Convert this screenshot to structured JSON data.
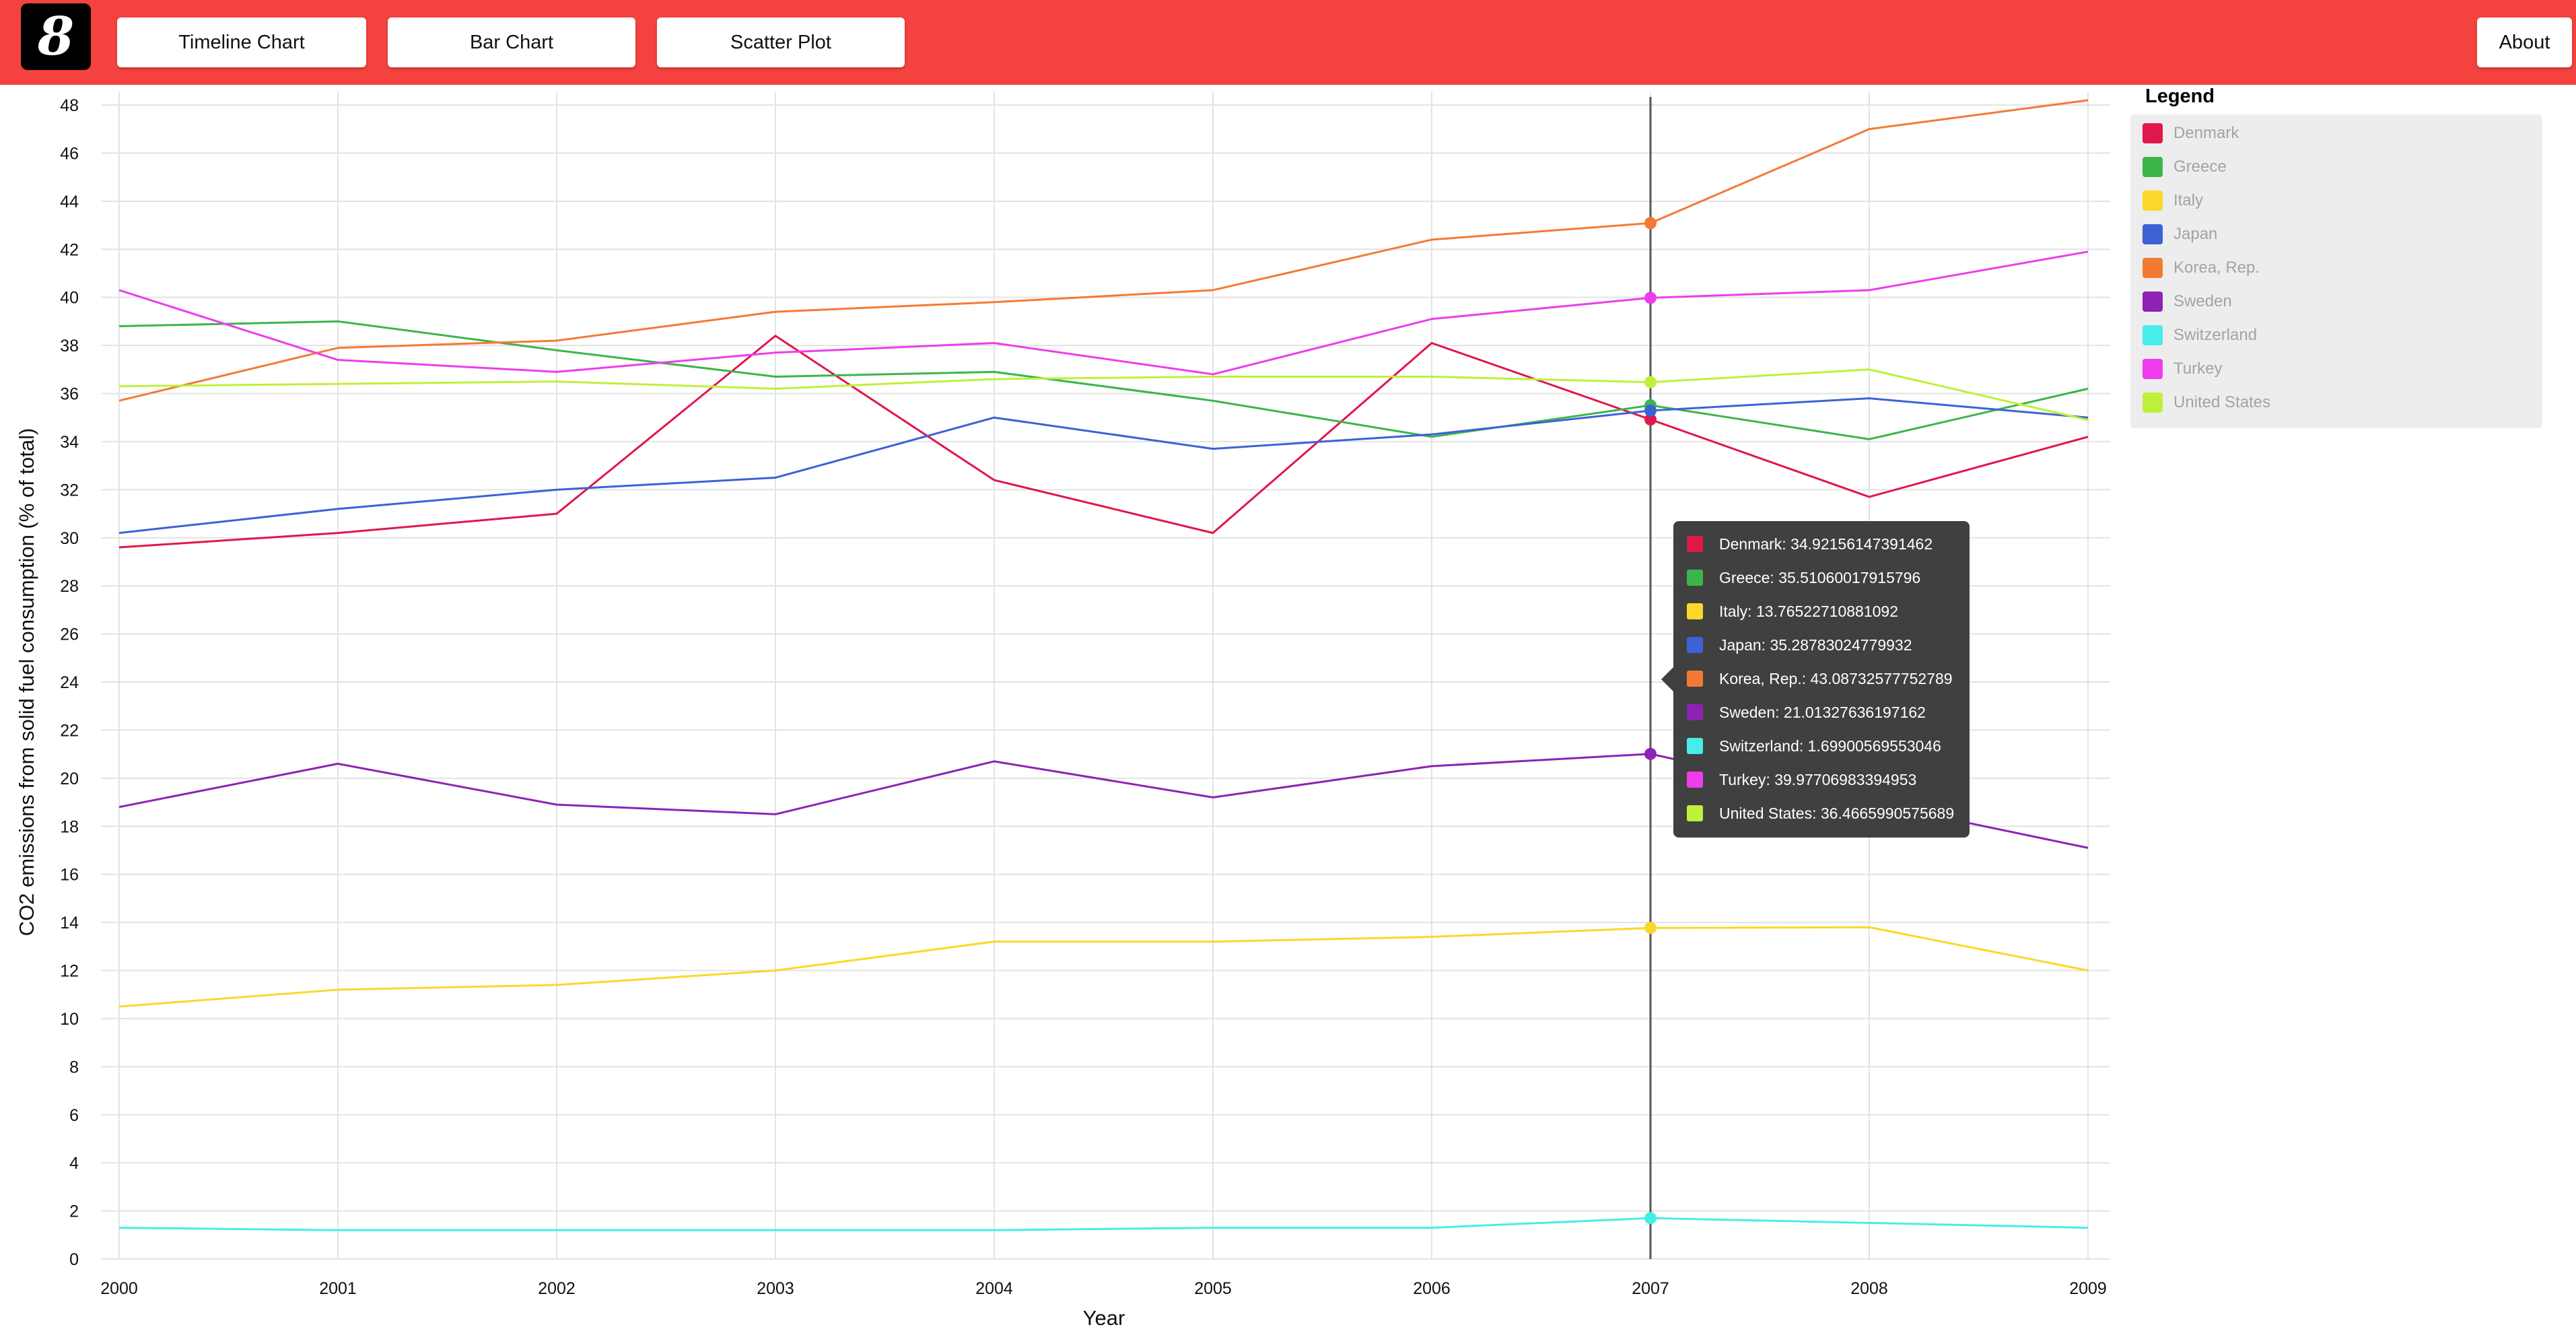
{
  "app": {
    "logo_text": "8",
    "nav": {
      "timeline_label": "Timeline Chart",
      "bar_label": "Bar Chart",
      "scatter_label": "Scatter Plot",
      "about_label": "About"
    }
  },
  "colors": {
    "topbar": "#f4433f",
    "gridline": "#e3e3e3",
    "cursor_line": "#555555",
    "tooltip_bg": "#404040",
    "legend_bg": "#ededed"
  },
  "legend": {
    "title": "Legend",
    "items": [
      {
        "label": "Denmark",
        "color": "#e0174a"
      },
      {
        "label": "Greece",
        "color": "#3cb54a"
      },
      {
        "label": "Italy",
        "color": "#fad829"
      },
      {
        "label": "Japan",
        "color": "#3d62d6"
      },
      {
        "label": "Korea, Rep.",
        "color": "#f47a33"
      },
      {
        "label": "Sweden",
        "color": "#8e22b5"
      },
      {
        "label": "Switzerland",
        "color": "#47ede8"
      },
      {
        "label": "Turkey",
        "color": "#ed3ded"
      },
      {
        "label": "United States",
        "color": "#bff03a"
      }
    ]
  },
  "tooltip": {
    "rows": [
      "Denmark: 34.92156147391462",
      "Greece: 35.51060017915796",
      "Italy: 13.76522710881092",
      "Japan: 35.28783024779932",
      "Korea, Rep.: 43.08732577752789",
      "Sweden: 21.01327636197162",
      "Switzerland: 1.69900569553046",
      "Turkey: 39.97706983394953",
      "United States: 36.4665990575689"
    ]
  },
  "chart_data": {
    "type": "line",
    "title": "",
    "xlabel": "Year",
    "ylabel": "CO2 emissions from solid fuel consumption (% of total)",
    "x": [
      2000,
      2001,
      2002,
      2003,
      2004,
      2005,
      2006,
      2007,
      2008,
      2009
    ],
    "xticks": [
      "2000",
      "2001",
      "2002",
      "2003",
      "2004",
      "2005",
      "2006",
      "2007",
      "2008",
      "2009"
    ],
    "ylim": [
      0,
      48
    ],
    "yticks": [
      0,
      2,
      4,
      6,
      8,
      10,
      12,
      14,
      16,
      18,
      20,
      22,
      24,
      26,
      28,
      30,
      32,
      34,
      36,
      38,
      40,
      42,
      44,
      46,
      48
    ],
    "grid": true,
    "legend_position": "right",
    "highlight_x": 2007,
    "series": [
      {
        "name": "Denmark",
        "color": "#e0174a",
        "values": [
          29.6,
          30.2,
          31.0,
          38.4,
          32.4,
          30.2,
          38.1,
          34.92,
          31.7,
          34.2
        ]
      },
      {
        "name": "Greece",
        "color": "#3cb54a",
        "values": [
          38.8,
          39.0,
          37.8,
          36.7,
          36.9,
          35.7,
          34.2,
          35.51,
          34.1,
          36.2
        ]
      },
      {
        "name": "Italy",
        "color": "#fad829",
        "values": [
          10.5,
          11.2,
          11.4,
          12.0,
          13.2,
          13.2,
          13.4,
          13.77,
          13.8,
          12.0
        ]
      },
      {
        "name": "Japan",
        "color": "#3d62d6",
        "values": [
          30.2,
          31.2,
          32.0,
          32.5,
          35.0,
          33.7,
          34.3,
          35.29,
          35.8,
          35.0
        ]
      },
      {
        "name": "Korea, Rep.",
        "color": "#f47a33",
        "values": [
          35.7,
          37.9,
          38.2,
          39.4,
          39.8,
          40.3,
          42.4,
          43.09,
          47.0,
          48.2
        ]
      },
      {
        "name": "Sweden",
        "color": "#8e22b5",
        "values": [
          18.8,
          20.6,
          18.9,
          18.5,
          20.7,
          19.2,
          20.5,
          21.01,
          19.0,
          17.1
        ]
      },
      {
        "name": "Switzerland",
        "color": "#47ede8",
        "values": [
          1.3,
          1.2,
          1.2,
          1.2,
          1.2,
          1.3,
          1.3,
          1.7,
          1.5,
          1.3
        ]
      },
      {
        "name": "Turkey",
        "color": "#ed3ded",
        "values": [
          40.3,
          37.4,
          36.9,
          37.7,
          38.1,
          36.8,
          39.1,
          39.98,
          40.3,
          41.9
        ]
      },
      {
        "name": "United States",
        "color": "#bff03a",
        "values": [
          36.3,
          36.4,
          36.5,
          36.2,
          36.6,
          36.7,
          36.7,
          36.47,
          37.0,
          34.9
        ]
      }
    ]
  }
}
